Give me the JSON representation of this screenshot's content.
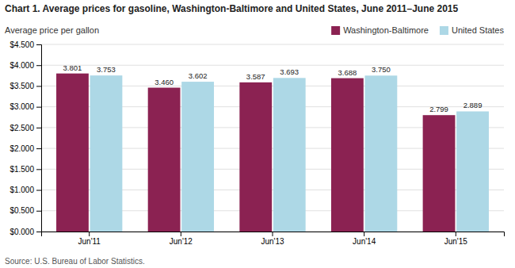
{
  "chart_data": {
    "type": "bar",
    "title": "Chart 1. Average prices for gasoline, Washington-Baltimore and United States, June 2011–June 2015",
    "ylabel": "Average price per gallon",
    "source": "Source: U.S. Bureau of Labor Statistics.",
    "categories": [
      "Jun'11",
      "Jun'12",
      "Jun'13",
      "Jun'14",
      "Jun'15"
    ],
    "series": [
      {
        "name": "Washington-Baltimore",
        "color": "#8B2252",
        "values": [
          3.801,
          3.46,
          3.587,
          3.688,
          2.799
        ],
        "value_labels": [
          "3.801",
          "3.460",
          "3.587",
          "3.688",
          "2.799"
        ]
      },
      {
        "name": "United States",
        "color": "#ADD8E6",
        "values": [
          3.753,
          3.602,
          3.693,
          3.75,
          2.889
        ],
        "value_labels": [
          "3.753",
          "3.602",
          "3.693",
          "3.750",
          "2.889"
        ]
      }
    ],
    "ylim": [
      0,
      4.5
    ],
    "yticks": [
      {
        "value": 0.0,
        "label": "$0.000"
      },
      {
        "value": 0.5,
        "label": "$0.500"
      },
      {
        "value": 1.0,
        "label": "$1.000"
      },
      {
        "value": 1.5,
        "label": "$1.500"
      },
      {
        "value": 2.0,
        "label": "$2.000"
      },
      {
        "value": 2.5,
        "label": "$2.500"
      },
      {
        "value": 3.0,
        "label": "$3.000"
      },
      {
        "value": 3.5,
        "label": "$3.500"
      },
      {
        "value": 4.0,
        "label": "$4.000"
      },
      {
        "value": 4.5,
        "label": "$4.500"
      }
    ],
    "grid": true,
    "legend": "upper right",
    "data_labels": true
  }
}
